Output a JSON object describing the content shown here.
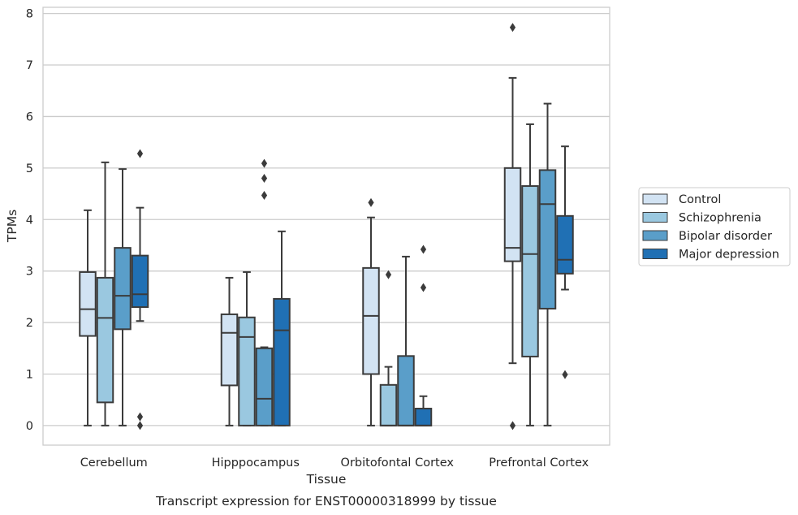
{
  "chart_data": {
    "type": "box",
    "xlabel": "Tissue",
    "ylabel": "TPMs",
    "caption": "Transcript expression for ENST00000318999 by tissue",
    "ylim": [
      -0.38,
      8.12
    ],
    "yticks": [
      "0",
      "1",
      "2",
      "3",
      "4",
      "5",
      "6",
      "7",
      "8"
    ],
    "grid": "horizontal",
    "legend_position": "right",
    "categories": [
      "Cerebellum",
      "Hipppocampus",
      "Orbitofontal Cortex",
      "Prefrontal Cortex"
    ],
    "series": [
      {
        "name": "Control",
        "color": "#d2e3f3",
        "boxes": [
          {
            "whislo": 0.0,
            "q1": 1.74,
            "med": 2.26,
            "q3": 2.98,
            "whishi": 4.18,
            "fliers": []
          },
          {
            "whislo": 0.0,
            "q1": 0.78,
            "med": 1.8,
            "q3": 2.16,
            "whishi": 2.87,
            "fliers": []
          },
          {
            "whislo": 0.0,
            "q1": 1.0,
            "med": 2.13,
            "q3": 3.06,
            "whishi": 4.04,
            "fliers": [
              4.33
            ]
          },
          {
            "whislo": 1.21,
            "q1": 3.19,
            "med": 3.45,
            "q3": 5.0,
            "whishi": 6.75,
            "fliers": [
              0.0,
              7.73
            ]
          }
        ]
      },
      {
        "name": "Schizophrenia",
        "color": "#9ac8e0",
        "boxes": [
          {
            "whislo": 0.0,
            "q1": 0.45,
            "med": 2.09,
            "q3": 2.87,
            "whishi": 5.11,
            "fliers": []
          },
          {
            "whislo": 0.0,
            "q1": 0.0,
            "med": 1.72,
            "q3": 2.1,
            "whishi": 2.98,
            "fliers": []
          },
          {
            "whislo": 0.0,
            "q1": 0.0,
            "med": 0.0,
            "q3": 0.79,
            "whishi": 1.14,
            "fliers": [
              2.93
            ]
          },
          {
            "whislo": 0.0,
            "q1": 1.34,
            "med": 3.33,
            "q3": 4.65,
            "whishi": 5.85,
            "fliers": []
          }
        ]
      },
      {
        "name": "Bipolar disorder",
        "color": "#5a9ec9",
        "boxes": [
          {
            "whislo": 0.0,
            "q1": 1.87,
            "med": 2.52,
            "q3": 3.45,
            "whishi": 4.98,
            "fliers": []
          },
          {
            "whislo": 0.0,
            "q1": 0.0,
            "med": 0.52,
            "q3": 1.5,
            "whishi": 1.52,
            "fliers": [
              4.47,
              4.8,
              5.09
            ]
          },
          {
            "whislo": 0.0,
            "q1": 0.0,
            "med": 0.0,
            "q3": 1.35,
            "whishi": 3.28,
            "fliers": []
          },
          {
            "whislo": 0.0,
            "q1": 2.27,
            "med": 4.3,
            "q3": 4.96,
            "whishi": 6.25,
            "fliers": []
          }
        ]
      },
      {
        "name": "Major depression",
        "color": "#2070b4",
        "boxes": [
          {
            "whislo": 2.03,
            "q1": 2.3,
            "med": 2.55,
            "q3": 3.3,
            "whishi": 4.23,
            "fliers": [
              0.0,
              0.17,
              5.28
            ]
          },
          {
            "whislo": 0.0,
            "q1": 0.0,
            "med": 1.85,
            "q3": 2.46,
            "whishi": 3.77,
            "fliers": []
          },
          {
            "whislo": 0.0,
            "q1": 0.0,
            "med": 0.0,
            "q3": 0.33,
            "whishi": 0.57,
            "fliers": [
              2.68,
              3.42
            ]
          },
          {
            "whislo": 2.64,
            "q1": 2.95,
            "med": 3.22,
            "q3": 4.07,
            "whishi": 5.42,
            "fliers": [
              0.99
            ]
          }
        ]
      }
    ]
  }
}
